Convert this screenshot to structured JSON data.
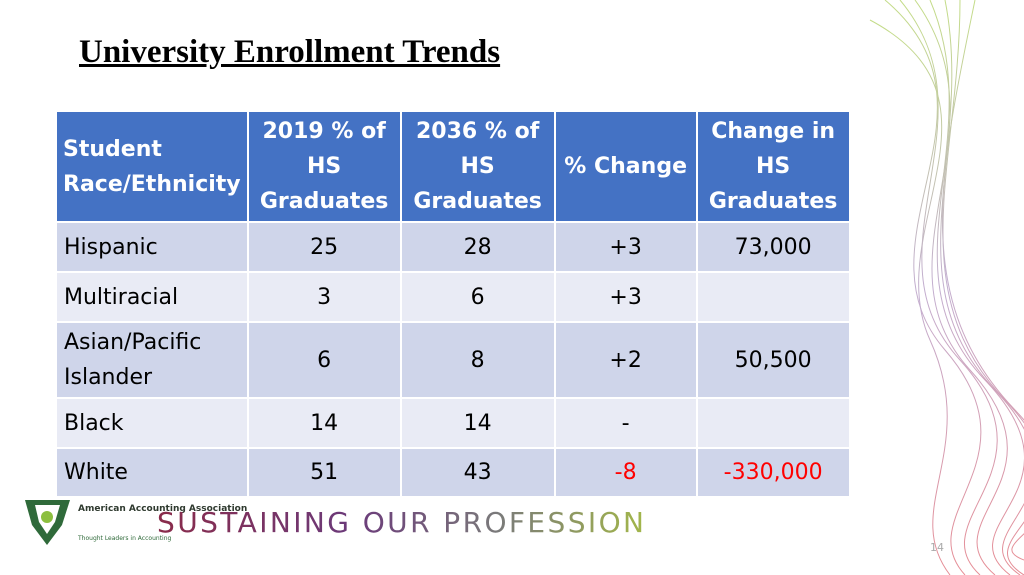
{
  "header": {
    "title": "University Enrollment Trends"
  },
  "table": {
    "columns": [
      "Student Race/Ethnicity",
      "2019 % of HS Graduates",
      "2036 % of HS Graduates",
      "% Change",
      "Change in HS Graduates"
    ],
    "rows": [
      [
        "Hispanic",
        "25",
        "28",
        "+3",
        "73,000"
      ],
      [
        "Multiracial",
        "3",
        "6",
        "+3",
        null
      ],
      [
        "Asian/Pacific Islander",
        "6",
        "8",
        "+2",
        "50,500"
      ],
      [
        "Black",
        "14",
        "14",
        "-",
        null
      ],
      [
        "White",
        "51",
        "43",
        "-8",
        "-330,000"
      ]
    ]
  },
  "footer": {
    "org_name": "American Accounting Association",
    "tagline": "Thought Leaders in Accounting",
    "slogan": "SUSTAINING OUR PROFESSION",
    "page_number": "14"
  }
}
